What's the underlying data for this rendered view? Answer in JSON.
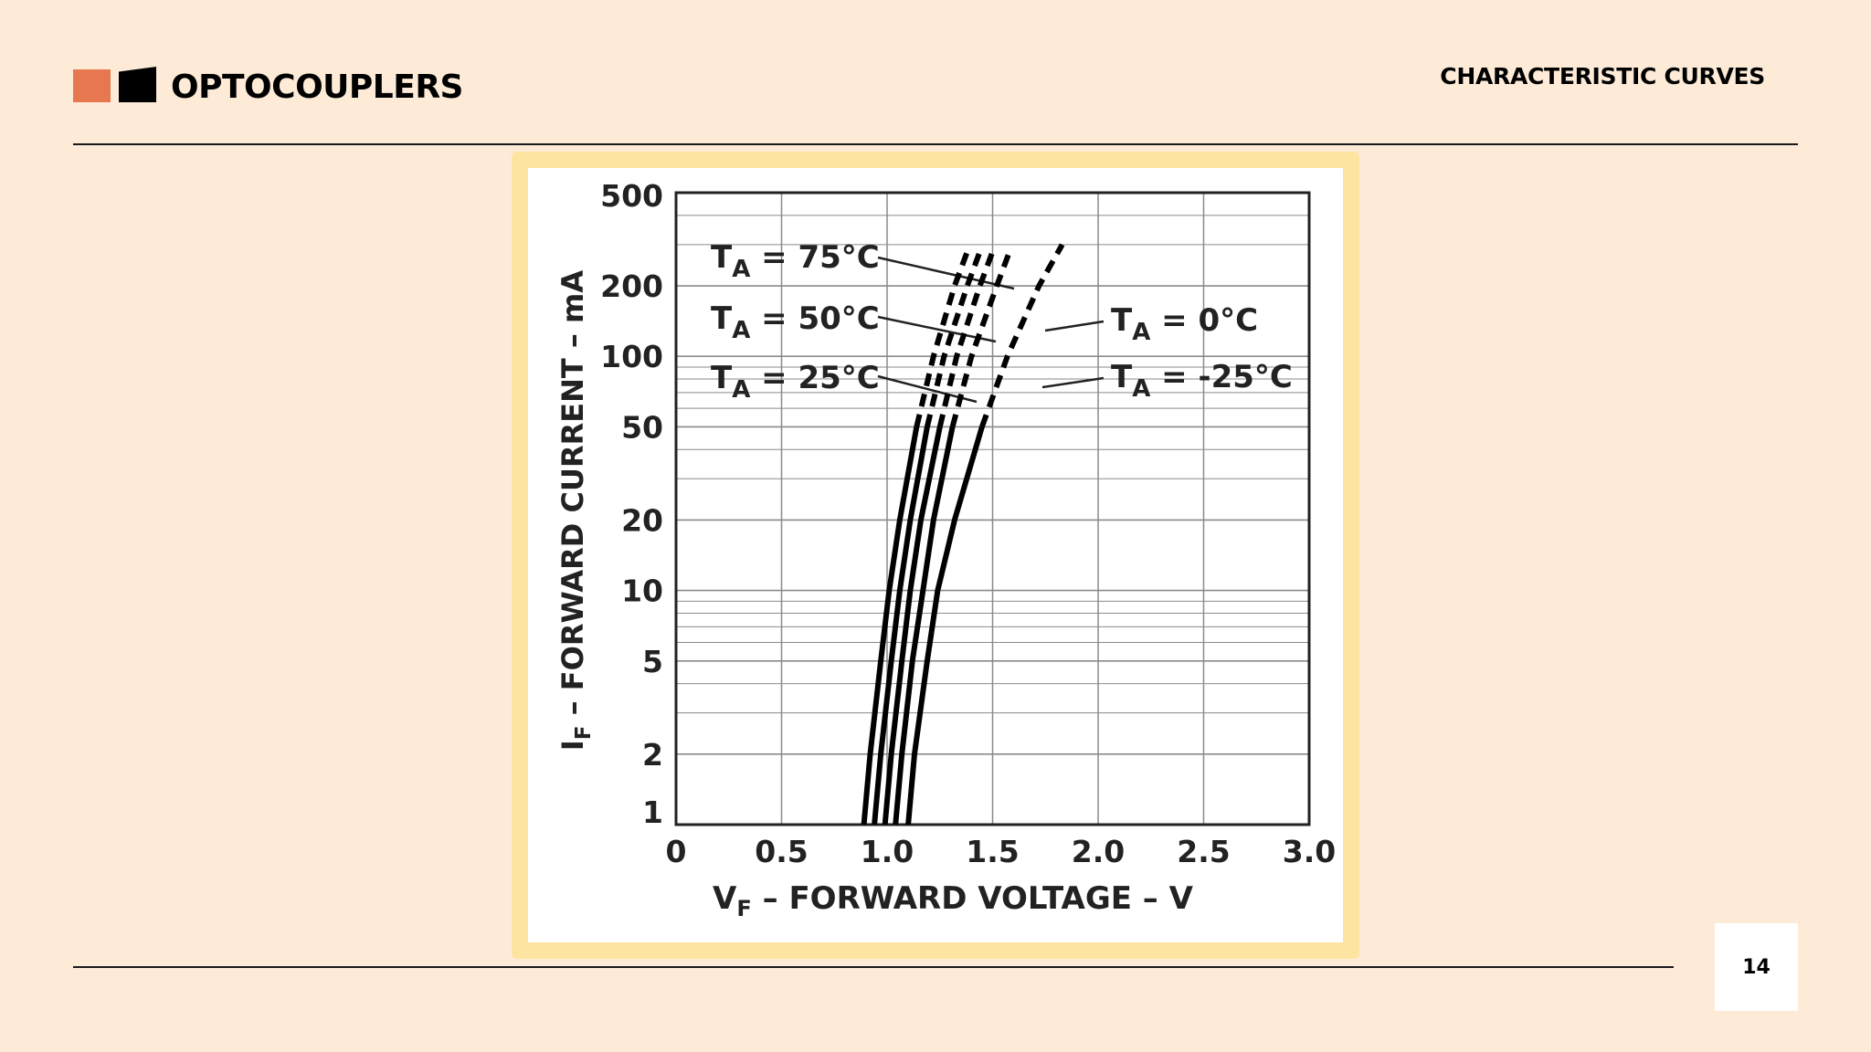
{
  "header": {
    "brand": "OPTOCOUPLERS",
    "section": "CHARACTERISTIC CURVES"
  },
  "footer": {
    "page_number": "14"
  },
  "colors": {
    "background": "#fdebd8",
    "accent": "#e6774f",
    "frame": "#fde4a0"
  },
  "chart_data": {
    "type": "line",
    "xlabel": {
      "main": "V",
      "sub": "F",
      "rest": " – FORWARD VOLTAGE – V"
    },
    "ylabel": {
      "main": "I",
      "sub": "F",
      "rest": " – FORWARD CURRENT – mA"
    },
    "xlim": [
      0,
      3.0
    ],
    "ylim": [
      1,
      500
    ],
    "yscale": "log",
    "grid": true,
    "x_ticks": [
      "0",
      "0.5",
      "1.0",
      "1.5",
      "2.0",
      "2.5",
      "3.0"
    ],
    "x_tick_values": [
      0,
      0.5,
      1.0,
      1.5,
      2.0,
      2.5,
      3.0
    ],
    "y_ticks": [
      "1",
      "2",
      "5",
      "10",
      "20",
      "50",
      "100",
      "200",
      "500"
    ],
    "y_tick_values": [
      1,
      2,
      5,
      10,
      20,
      50,
      100,
      200,
      500
    ],
    "dashed_above_mA": 50,
    "series": [
      {
        "temp": "75°C",
        "points": [
          [
            0.89,
            1
          ],
          [
            0.92,
            2
          ],
          [
            0.97,
            5
          ],
          [
            1.01,
            10
          ],
          [
            1.06,
            20
          ],
          [
            1.14,
            50
          ],
          [
            1.22,
            100
          ],
          [
            1.32,
            200
          ],
          [
            1.38,
            280
          ]
        ]
      },
      {
        "temp": "50°C",
        "points": [
          [
            0.94,
            1
          ],
          [
            0.97,
            2
          ],
          [
            1.02,
            5
          ],
          [
            1.06,
            10
          ],
          [
            1.11,
            20
          ],
          [
            1.19,
            50
          ],
          [
            1.27,
            100
          ],
          [
            1.38,
            200
          ],
          [
            1.44,
            280
          ]
        ]
      },
      {
        "temp": "25°C",
        "points": [
          [
            0.99,
            1
          ],
          [
            1.02,
            2
          ],
          [
            1.07,
            5
          ],
          [
            1.11,
            10
          ],
          [
            1.16,
            20
          ],
          [
            1.25,
            50
          ],
          [
            1.33,
            100
          ],
          [
            1.44,
            200
          ],
          [
            1.5,
            280
          ]
        ]
      },
      {
        "temp": "0°C",
        "points": [
          [
            1.04,
            1
          ],
          [
            1.07,
            2
          ],
          [
            1.12,
            5
          ],
          [
            1.17,
            10
          ],
          [
            1.22,
            20
          ],
          [
            1.31,
            50
          ],
          [
            1.4,
            100
          ],
          [
            1.52,
            200
          ],
          [
            1.58,
            280
          ]
        ]
      },
      {
        "temp": "-25°C",
        "points": [
          [
            1.1,
            1
          ],
          [
            1.13,
            2
          ],
          [
            1.19,
            5
          ],
          [
            1.24,
            10
          ],
          [
            1.32,
            20
          ],
          [
            1.45,
            50
          ],
          [
            1.57,
            100
          ],
          [
            1.72,
            200
          ],
          [
            1.83,
            300
          ]
        ]
      }
    ],
    "annotations": [
      {
        "main": "T",
        "sub": "A",
        "rest": " = 75°C"
      },
      {
        "main": "T",
        "sub": "A",
        "rest": " = 50°C"
      },
      {
        "main": "T",
        "sub": "A",
        "rest": " = 25°C"
      },
      {
        "main": "T",
        "sub": "A",
        "rest": " = 0°C"
      },
      {
        "main": "T",
        "sub": "A",
        "rest": " = -25°C"
      }
    ]
  }
}
